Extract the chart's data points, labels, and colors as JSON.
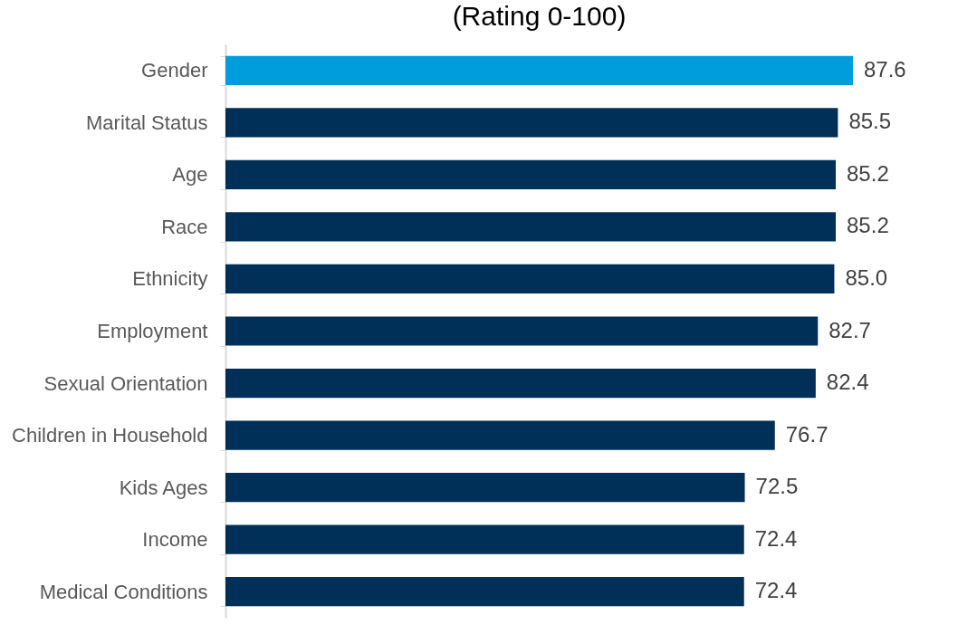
{
  "chart_data": {
    "type": "bar",
    "orientation": "horizontal",
    "title": "(Rating 0-100)",
    "categories": [
      "Gender",
      "Marital Status",
      "Age",
      "Race",
      "Ethnicity",
      "Employment",
      "Sexual Orientation",
      "Children in Household",
      "Kids Ages",
      "Income",
      "Medical Conditions"
    ],
    "values": [
      87.6,
      85.5,
      85.2,
      85.2,
      85.0,
      82.7,
      82.4,
      76.7,
      72.5,
      72.4,
      72.4
    ],
    "value_labels": [
      "87.6",
      "85.5",
      "85.2",
      "85.2",
      "85.0",
      "82.7",
      "82.4",
      "76.7",
      "72.5",
      "72.4",
      "72.4"
    ],
    "colors": [
      "#009ddc",
      "#003057",
      "#003057",
      "#003057",
      "#003057",
      "#003057",
      "#003057",
      "#003057",
      "#003057",
      "#003057",
      "#003057"
    ],
    "tick_labels": "y"
  }
}
